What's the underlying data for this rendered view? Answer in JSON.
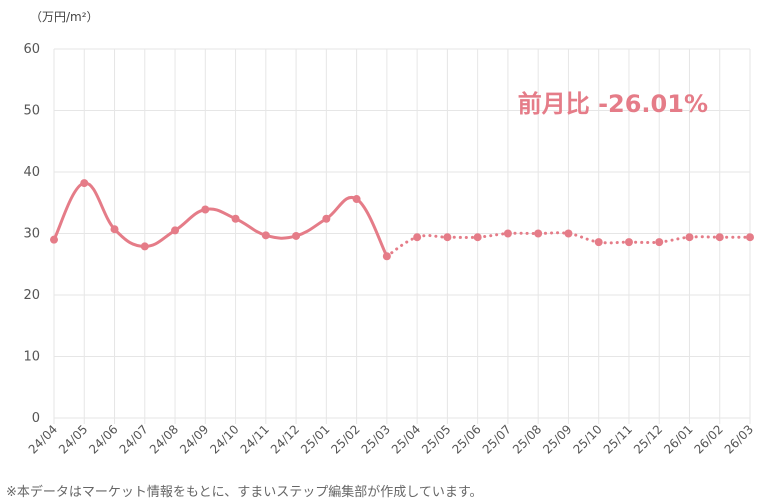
{
  "unit_label": "（万円/m²）",
  "change_label": "前月比 -26.01%",
  "footnote": "※本データはマーケット情報をもとに、すまいステップ編集部が作成しています。",
  "colors": {
    "line": "#e57c88",
    "grid": "#e6e6e6",
    "axis_text": "#555555"
  },
  "chart_data": {
    "type": "line",
    "title": "",
    "xlabel": "",
    "ylabel": "（万円/m²）",
    "ylim": [
      0,
      60
    ],
    "yticks": [
      0,
      10,
      20,
      30,
      40,
      50,
      60
    ],
    "grid": true,
    "categories": [
      "24/04",
      "24/05",
      "24/06",
      "24/07",
      "24/08",
      "24/09",
      "24/10",
      "24/11",
      "24/12",
      "25/01",
      "25/02",
      "25/03",
      "25/04",
      "25/05",
      "25/06",
      "25/07",
      "25/08",
      "25/09",
      "25/10",
      "25/11",
      "25/12",
      "26/01",
      "26/02",
      "26/03"
    ],
    "series": [
      {
        "style": "solid",
        "values": [
          29.0,
          38.2,
          30.7,
          27.9,
          30.5,
          33.9,
          32.4,
          29.7,
          29.6,
          32.4,
          35.6,
          26.3,
          null,
          null,
          null,
          null,
          null,
          null,
          null,
          null,
          null,
          null,
          null,
          null
        ]
      },
      {
        "style": "dotted",
        "values": [
          null,
          null,
          null,
          null,
          null,
          null,
          null,
          null,
          null,
          null,
          null,
          26.3,
          29.4,
          29.4,
          29.4,
          30.0,
          30.0,
          30.0,
          28.6,
          28.6,
          28.6,
          29.4,
          29.4,
          29.4
        ]
      }
    ]
  }
}
